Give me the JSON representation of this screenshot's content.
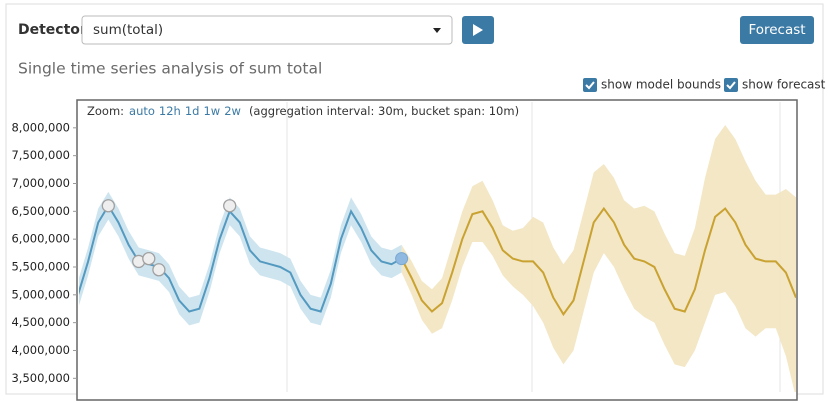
{
  "header": {
    "detector_label": "Detector:",
    "detector_value": "sum(total)",
    "forecast_button": "Forecast"
  },
  "subtitle": "Single time series analysis of sum total",
  "checkboxes": [
    "show model bounds",
    "show forecast"
  ],
  "zoom": {
    "label": "Zoom:",
    "options": [
      "auto",
      "12h",
      "1d",
      "1w",
      "2w"
    ],
    "info": "(aggregation interval: 30m, bucket span: 10m)"
  },
  "chart_data": {
    "type": "line",
    "ylim": [
      3290000,
      8500000
    ],
    "yticks": [
      {
        "value": 3500000,
        "label": "3,500,000"
      },
      {
        "value": 4000000,
        "label": "4,000,000"
      },
      {
        "value": 4500000,
        "label": "4,500,000"
      },
      {
        "value": 5000000,
        "label": "5,000,000"
      },
      {
        "value": 5500000,
        "label": "5,500,000"
      },
      {
        "value": 6000000,
        "label": "6,000,000"
      },
      {
        "value": 6500000,
        "label": "6,500,000"
      },
      {
        "value": 7000000,
        "label": "7,000,000"
      },
      {
        "value": 7500000,
        "label": "7,500,000"
      },
      {
        "value": 8000000,
        "label": "8,000,000"
      }
    ],
    "series": [
      {
        "color": "#5499bf",
        "band_color": "#c9e2ee",
        "values": [
          5000000,
          5600000,
          6300000,
          6600000,
          6300000,
          5900000,
          5600000,
          5550000,
          5500000,
          5300000,
          4900000,
          4700000,
          4750000,
          5300000,
          6000000,
          6500000,
          6300000,
          5800000,
          5600000,
          5550000,
          5500000,
          5400000,
          5000000,
          4750000,
          4700000,
          5200000,
          6000000,
          6500000,
          6200000,
          5800000,
          5600000,
          5550000,
          5650000
        ],
        "upper": [
          5250000,
          5850000,
          6550000,
          6850000,
          6550000,
          6150000,
          5850000,
          5800000,
          5750000,
          5550000,
          5150000,
          4950000,
          5000000,
          5550000,
          6250000,
          6750000,
          6550000,
          6050000,
          5850000,
          5800000,
          5750000,
          5650000,
          5250000,
          5000000,
          4950000,
          5450000,
          6250000,
          6750000,
          6450000,
          6050000,
          5850000,
          5800000,
          5900000
        ],
        "lower": [
          4750000,
          5350000,
          6050000,
          6350000,
          6050000,
          5650000,
          5350000,
          5300000,
          5250000,
          5050000,
          4650000,
          4450000,
          4500000,
          5050000,
          5750000,
          6250000,
          6050000,
          5550000,
          5350000,
          5300000,
          5250000,
          5150000,
          4750000,
          4500000,
          4450000,
          4950000,
          5750000,
          6250000,
          5950000,
          5550000,
          5350000,
          5300000,
          5400000
        ]
      },
      {
        "color": "#c9a231",
        "band_color": "#f2e4c0",
        "values": [
          5650000,
          5300000,
          4900000,
          4700000,
          4850000,
          5400000,
          6000000,
          6450000,
          6500000,
          6200000,
          5800000,
          5650000,
          5600000,
          5600000,
          5400000,
          4950000,
          4650000,
          4900000,
          5600000,
          6300000,
          6550000,
          6300000,
          5900000,
          5650000,
          5600000,
          5500000,
          5100000,
          4750000,
          4700000,
          5100000,
          5800000,
          6400000,
          6550000,
          6300000,
          5900000,
          5650000,
          5600000,
          5600000,
          5400000,
          4950000
        ],
        "upper": [
          5900000,
          5600000,
          5250000,
          5100000,
          5300000,
          5900000,
          6500000,
          6950000,
          7050000,
          6700000,
          6250000,
          6150000,
          6200000,
          6400000,
          6300000,
          5850000,
          5550000,
          5800000,
          6500000,
          7200000,
          7350000,
          7100000,
          6700000,
          6550000,
          6600000,
          6500000,
          6100000,
          5750000,
          5700000,
          6200000,
          7100000,
          7800000,
          8050000,
          7800000,
          7400000,
          7050000,
          6800000,
          6800000,
          6900000,
          6750000
        ],
        "lower": [
          5400000,
          5000000,
          4550000,
          4300000,
          4400000,
          4900000,
          5500000,
          5950000,
          5950000,
          5700000,
          5350000,
          5150000,
          5000000,
          4800000,
          4500000,
          4050000,
          3750000,
          4000000,
          4700000,
          5400000,
          5750000,
          5500000,
          5100000,
          4750000,
          4600000,
          4500000,
          4100000,
          3750000,
          3700000,
          4000000,
          4500000,
          5000000,
          5050000,
          4800000,
          4400000,
          4250000,
          4400000,
          4400000,
          3900000,
          3150000
        ]
      }
    ],
    "markers": {
      "fill": "#eeeeee",
      "stroke": "#a0a0a0",
      "values": [
        null,
        null,
        null,
        6600000,
        null,
        null,
        5600000,
        5650000,
        5450000,
        null,
        null,
        null,
        null,
        null,
        null,
        6600000,
        null,
        null,
        null,
        null,
        null,
        null,
        null,
        null,
        null,
        null,
        null,
        null,
        null,
        null,
        null,
        null,
        null
      ]
    }
  }
}
